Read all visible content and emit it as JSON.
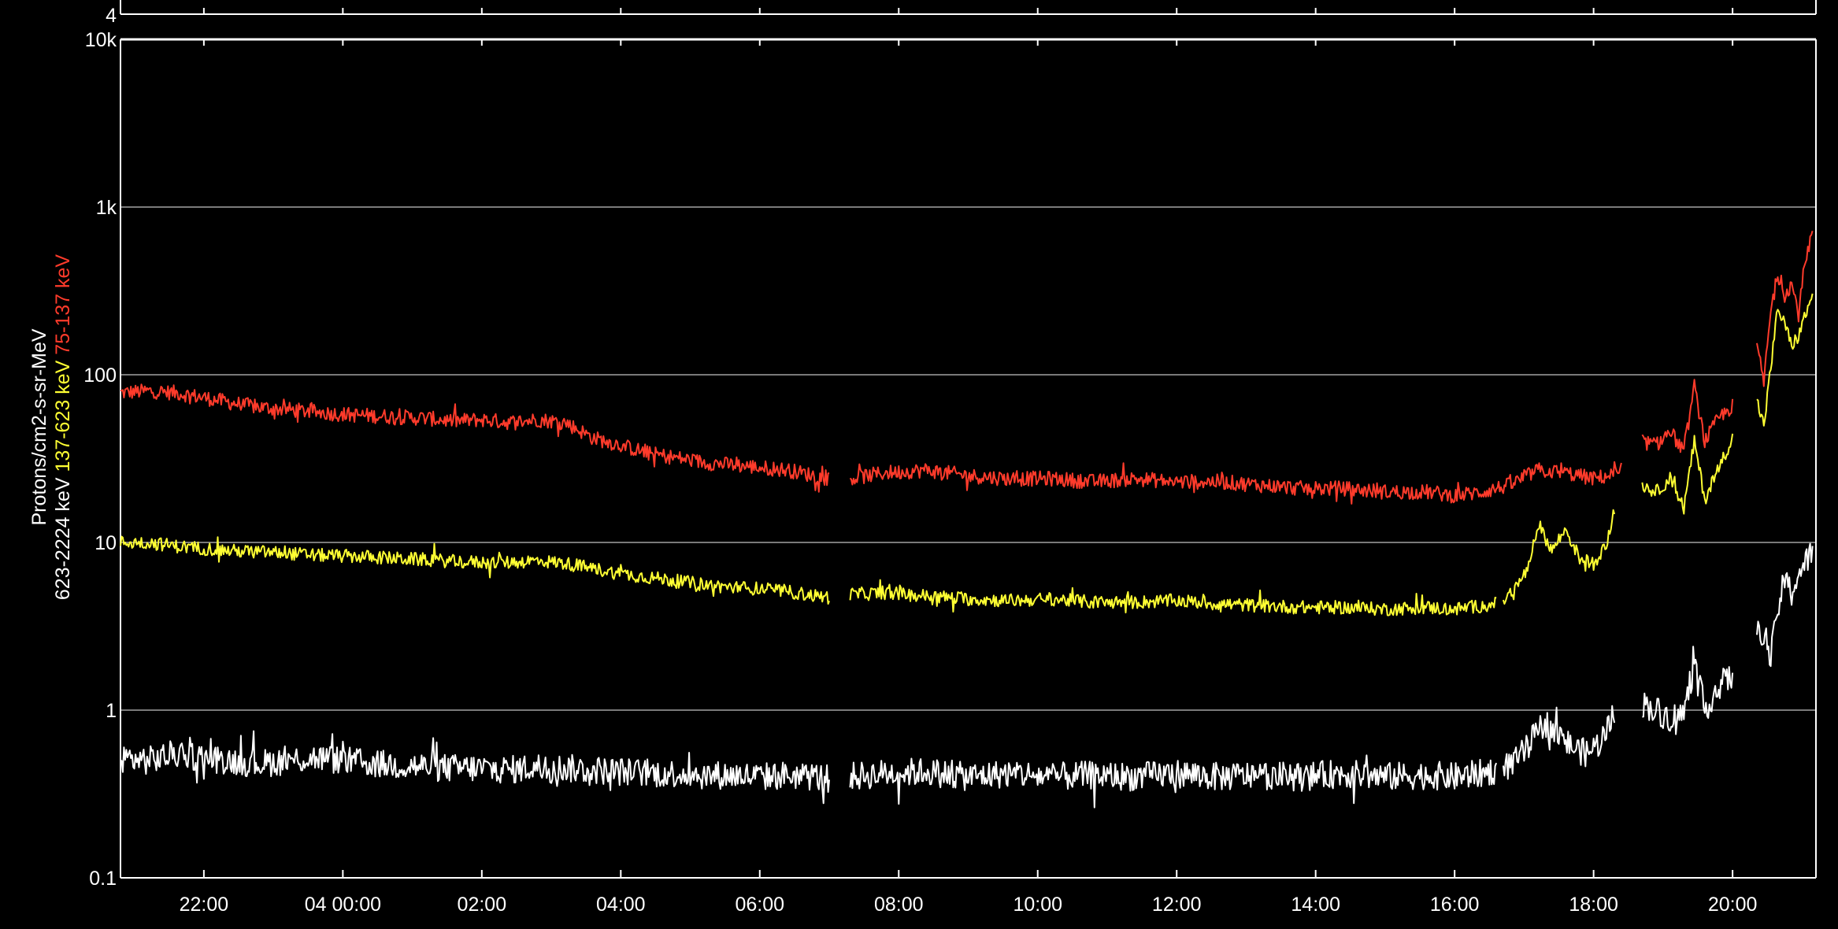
{
  "chart_data": {
    "type": "line",
    "title": "",
    "ylabel": {
      "line1_parts": [
        {
          "text": "Protons/cm2-s-sr-MeV",
          "color": "#ffffff"
        }
      ],
      "line2_parts": [
        {
          "text": "623-2224 keV",
          "color": "#ffffff"
        },
        {
          "text": "137-623 keV",
          "color": "#ffff33"
        },
        {
          "text": "75-137 keV",
          "color": "#ff3b2b"
        }
      ]
    },
    "upper_panel_tick": "4",
    "y_scale": "log",
    "ylim": [
      0.1,
      10000
    ],
    "y_ticks": [
      {
        "value": 10000,
        "label": "10k"
      },
      {
        "value": 1000,
        "label": "1k"
      },
      {
        "value": 100,
        "label": "100"
      },
      {
        "value": 10,
        "label": "10"
      },
      {
        "value": 1,
        "label": "1"
      },
      {
        "value": 0.1,
        "label": "0.1"
      }
    ],
    "xlim_hours": [
      -3.2,
      21.2
    ],
    "x_ticks": [
      {
        "hour": -2,
        "label": "22:00"
      },
      {
        "hour": 0,
        "label": "04 00:00"
      },
      {
        "hour": 2,
        "label": "02:00"
      },
      {
        "hour": 4,
        "label": "04:00"
      },
      {
        "hour": 6,
        "label": "06:00"
      },
      {
        "hour": 8,
        "label": "08:00"
      },
      {
        "hour": 10,
        "label": "10:00"
      },
      {
        "hour": 12,
        "label": "12:00"
      },
      {
        "hour": 14,
        "label": "14:00"
      },
      {
        "hour": 16,
        "label": "16:00"
      },
      {
        "hour": 18,
        "label": "18:00"
      },
      {
        "hour": 20,
        "label": "20:00"
      }
    ],
    "grid": true,
    "series": [
      {
        "name": "75-137 keV",
        "color": "#ff3b2b",
        "segments": [
          {
            "x": [
              -3.2,
              -2.8,
              -2.4,
              -2.0,
              -1.6,
              -1.2,
              -0.8,
              -0.4,
              0.0,
              0.4,
              0.8,
              1.2,
              1.6,
              2.0,
              2.4,
              2.8,
              3.2,
              3.6,
              4.0,
              4.4,
              4.8,
              5.2,
              5.6,
              6.0,
              6.4,
              6.8,
              7.0
            ],
            "y": [
              78,
              80,
              78,
              73,
              68,
              64,
              62,
              60,
              58,
              57,
              56,
              55,
              53,
              54,
              52,
              54,
              52,
              42,
              38,
              34,
              32,
              30,
              29,
              28,
              27,
              25,
              24
            ]
          },
          {
            "x": [
              7.3,
              7.8,
              8.4,
              9.0,
              9.6,
              10.2,
              10.8,
              11.4,
              12.0,
              12.6,
              13.2,
              13.8,
              14.4,
              15.0,
              15.6,
              16.0,
              16.4,
              16.8,
              17.2,
              17.6,
              18.0,
              18.4
            ],
            "y": [
              24,
              26,
              27,
              25,
              24,
              24,
              23,
              24,
              23,
              23,
              22,
              21,
              21,
              20,
              20,
              19,
              20,
              22,
              27,
              26,
              24,
              26
            ]
          },
          {
            "x": [
              18.7,
              18.9,
              19.1,
              19.3,
              19.45,
              19.6,
              19.8,
              20.0
            ],
            "y": [
              40,
              38,
              46,
              35,
              85,
              40,
              55,
              65
            ]
          },
          {
            "x": [
              20.35,
              20.45,
              20.55,
              20.65,
              20.75,
              20.85,
              20.95,
              21.05,
              21.15
            ],
            "y": [
              150,
              90,
              240,
              400,
              300,
              350,
              230,
              500,
              700
            ]
          }
        ]
      },
      {
        "name": "137-623 keV",
        "color": "#ffff33",
        "segments": [
          {
            "x": [
              -3.2,
              -2.8,
              -2.4,
              -2.0,
              -1.6,
              -1.2,
              -0.8,
              -0.4,
              0.0,
              0.4,
              0.8,
              1.2,
              1.6,
              2.0,
              2.4,
              2.8,
              3.2,
              3.6,
              4.0,
              4.4,
              4.8,
              5.2,
              5.6,
              6.0,
              6.4,
              6.8,
              7.0
            ],
            "y": [
              10,
              10,
              9.5,
              9.2,
              8.9,
              8.8,
              8.6,
              8.4,
              8.3,
              8.2,
              8.0,
              7.9,
              7.7,
              7.6,
              7.6,
              7.8,
              7.5,
              7.0,
              6.5,
              6.2,
              5.9,
              5.6,
              5.4,
              5.3,
              5.1,
              4.8,
              4.7
            ]
          },
          {
            "x": [
              7.3,
              7.8,
              8.4,
              9.0,
              9.6,
              10.2,
              10.8,
              11.4,
              12.0,
              12.6,
              13.2,
              13.8,
              14.4,
              15.0,
              15.6,
              16.0,
              16.4,
              16.6
            ],
            "y": [
              4.9,
              5.0,
              4.8,
              4.6,
              4.5,
              4.6,
              4.4,
              4.4,
              4.5,
              4.3,
              4.2,
              4.1,
              4.1,
              4.0,
              4.1,
              4.0,
              4.2,
              4.3
            ]
          },
          {
            "x": [
              16.7,
              16.9,
              17.1,
              17.2,
              17.4,
              17.6,
              17.8,
              18.0,
              18.2,
              18.3
            ],
            "y": [
              4.5,
              5.5,
              7.5,
              13,
              9,
              12,
              8,
              7.5,
              10,
              16
            ]
          },
          {
            "x": [
              18.7,
              18.9,
              19.1,
              19.3,
              19.45,
              19.6,
              19.8,
              20.0
            ],
            "y": [
              22,
              20,
              24,
              16,
              40,
              18,
              28,
              42
            ]
          },
          {
            "x": [
              20.35,
              20.45,
              20.55,
              20.65,
              20.75,
              20.85,
              20.95,
              21.05,
              21.15
            ],
            "y": [
              70,
              50,
              110,
              250,
              200,
              150,
              170,
              230,
              290
            ]
          }
        ]
      },
      {
        "name": "623-2224 keV",
        "color": "#ffffff",
        "segments": [
          {
            "x": [
              -3.2,
              -2.8,
              -2.4,
              -2.0,
              -1.6,
              -1.2,
              -0.8,
              -0.4,
              0.0,
              0.4,
              0.8,
              1.2,
              1.6,
              2.0,
              2.4,
              2.8,
              3.2,
              3.6,
              4.0,
              4.4,
              4.8,
              5.2,
              5.6,
              6.0,
              6.4,
              6.8,
              7.0
            ],
            "y": [
              0.52,
              0.5,
              0.55,
              0.52,
              0.5,
              0.48,
              0.5,
              0.52,
              0.5,
              0.48,
              0.47,
              0.46,
              0.45,
              0.45,
              0.44,
              0.46,
              0.45,
              0.44,
              0.43,
              0.42,
              0.42,
              0.41,
              0.41,
              0.4,
              0.41,
              0.4,
              0.39
            ]
          },
          {
            "x": [
              7.3,
              7.8,
              8.4,
              9.0,
              9.6,
              10.2,
              10.8,
              11.4,
              12.0,
              12.6,
              13.2,
              13.8,
              14.4,
              15.0,
              15.6,
              16.0,
              16.4,
              16.6
            ],
            "y": [
              0.4,
              0.42,
              0.43,
              0.4,
              0.42,
              0.4,
              0.41,
              0.4,
              0.42,
              0.4,
              0.41,
              0.4,
              0.42,
              0.4,
              0.41,
              0.4,
              0.42,
              0.44
            ]
          },
          {
            "x": [
              16.7,
              16.9,
              17.1,
              17.3,
              17.5,
              17.7,
              17.9,
              18.1,
              18.3
            ],
            "y": [
              0.45,
              0.5,
              0.65,
              0.85,
              0.7,
              0.6,
              0.55,
              0.65,
              0.95
            ]
          },
          {
            "x": [
              18.7,
              18.9,
              19.1,
              19.3,
              19.45,
              19.6,
              19.8,
              20.0
            ],
            "y": [
              1.1,
              1.0,
              0.9,
              0.95,
              1.9,
              1.0,
              1.4,
              1.6
            ]
          },
          {
            "x": [
              20.35,
              20.45,
              20.55,
              20.65,
              20.75,
              20.85,
              20.95,
              21.05,
              21.15
            ],
            "y": [
              2.8,
              3.0,
              2.0,
              4.0,
              6.0,
              5.0,
              6.5,
              7.5,
              9.0
            ]
          }
        ]
      }
    ]
  }
}
